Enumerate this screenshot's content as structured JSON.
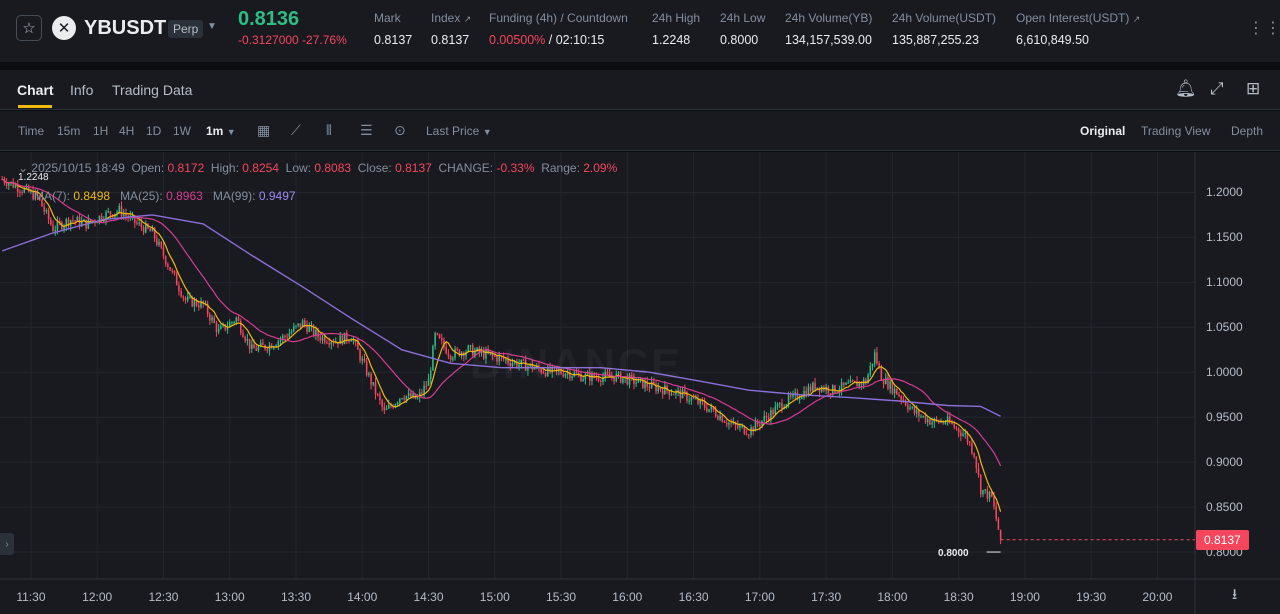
{
  "header": {
    "symbol": "YBUSDT",
    "badge": "Perp",
    "last_price": "0.8136",
    "change": "-0.3127000 -27.76%",
    "stats": [
      {
        "label": "Mark",
        "value": "0.8137"
      },
      {
        "label": "Index",
        "value": "0.8137"
      },
      {
        "label": "Funding (4h) / Countdown",
        "value_red": "0.00500%",
        "value_rest": " / 02:10:15"
      },
      {
        "label": "24h High",
        "value": "1.2248"
      },
      {
        "label": "24h Low",
        "value": "0.8000"
      },
      {
        "label": "24h Volume(YB)",
        "value": "134,157,539.00"
      },
      {
        "label": "24h Volume(USDT)",
        "value": "135,887,255.23"
      },
      {
        "label": "Open Interest(USDT)",
        "value": "6,610,849.50"
      }
    ]
  },
  "tabs": [
    "Chart",
    "Info",
    "Trading Data"
  ],
  "toolbar": {
    "timeframes": [
      "Time",
      "15m",
      "1H",
      "4H",
      "1D",
      "1W",
      "1m"
    ],
    "price_type": "Last Price",
    "views": [
      "Original",
      "Trading View",
      "Depth"
    ]
  },
  "legend": {
    "date": "2025/10/15 18:49",
    "open_label": "Open:",
    "open": "0.8172",
    "high_label": "High:",
    "high": "0.8254",
    "low_label": "Low:",
    "low": "0.8083",
    "close_label": "Close:",
    "close": "0.8137",
    "change_label": "CHANGE:",
    "change": "-0.33%",
    "range_label": "Range:",
    "range": "2.09%",
    "ma7_label": "MA(7):",
    "ma7": "0.8498",
    "ma25_label": "MA(25):",
    "ma25": "0.8963",
    "ma99_label": "MA(99):",
    "ma99": "0.9497"
  },
  "colors": {
    "up": "#2ebd85",
    "down": "#f6465d",
    "ma7": "#f0b90b",
    "ma25": "#d63c8f",
    "ma99": "#8b6fd6"
  },
  "watermark": "BINANCE",
  "current_price_tag": "0.8137",
  "high_marker": "1.2248",
  "low_marker": "0.8000",
  "chart_data": {
    "type": "candlestick",
    "y_ticks": [
      "1.2000",
      "1.1500",
      "1.1000",
      "1.0500",
      "1.0000",
      "0.9500",
      "0.9000",
      "0.8500",
      "0.8000"
    ],
    "y_tick_values": [
      1.2,
      1.15,
      1.1,
      1.05,
      1.0,
      0.95,
      0.9,
      0.85,
      0.8
    ],
    "x_ticks": [
      "11:30",
      "12:00",
      "12:30",
      "13:00",
      "13:30",
      "14:00",
      "14:30",
      "15:00",
      "15:30",
      "16:00",
      "16:30",
      "17:00",
      "17:30",
      "18:00",
      "18:30",
      "19:00",
      "19:30",
      "20:00"
    ],
    "ylim": [
      0.77,
      1.245
    ],
    "xlim": [
      "11:16",
      "20:17"
    ],
    "price_path": [
      [
        "11:17",
        1.215
      ],
      [
        "11:25",
        1.205
      ],
      [
        "11:33",
        1.195
      ],
      [
        "11:40",
        1.16
      ],
      [
        "11:48",
        1.17
      ],
      [
        "11:55",
        1.165
      ],
      [
        "12:03",
        1.175
      ],
      [
        "12:10",
        1.18
      ],
      [
        "12:18",
        1.165
      ],
      [
        "12:25",
        1.155
      ],
      [
        "12:33",
        1.115
      ],
      [
        "12:40",
        1.08
      ],
      [
        "12:48",
        1.075
      ],
      [
        "12:55",
        1.045
      ],
      [
        "13:03",
        1.06
      ],
      [
        "13:10",
        1.025
      ],
      [
        "13:18",
        1.03
      ],
      [
        "13:25",
        1.04
      ],
      [
        "13:33",
        1.055
      ],
      [
        "13:40",
        1.04
      ],
      [
        "13:48",
        1.035
      ],
      [
        "13:55",
        1.04
      ],
      [
        "14:03",
        0.995
      ],
      [
        "14:10",
        0.955
      ],
      [
        "14:18",
        0.975
      ],
      [
        "14:25",
        0.97
      ],
      [
        "14:30",
        0.99
      ],
      [
        "14:33",
        1.04
      ],
      [
        "14:40",
        1.02
      ],
      [
        "14:48",
        1.025
      ],
      [
        "14:55",
        1.02
      ],
      [
        "15:03",
        1.015
      ],
      [
        "15:10",
        1.01
      ],
      [
        "15:18",
        1.005
      ],
      [
        "15:25",
        1.0
      ],
      [
        "15:33",
        1.0
      ],
      [
        "15:40",
        0.995
      ],
      [
        "15:48",
        0.995
      ],
      [
        "15:55",
        0.995
      ],
      [
        "16:03",
        0.99
      ],
      [
        "16:10",
        0.985
      ],
      [
        "16:18",
        0.98
      ],
      [
        "16:25",
        0.975
      ],
      [
        "16:33",
        0.965
      ],
      [
        "16:40",
        0.955
      ],
      [
        "16:48",
        0.94
      ],
      [
        "16:55",
        0.935
      ],
      [
        "17:03",
        0.95
      ],
      [
        "17:10",
        0.965
      ],
      [
        "17:18",
        0.975
      ],
      [
        "17:25",
        0.985
      ],
      [
        "17:33",
        0.98
      ],
      [
        "17:40",
        0.985
      ],
      [
        "17:48",
        0.99
      ],
      [
        "17:52",
        1.02
      ],
      [
        "17:55",
        0.995
      ],
      [
        "18:03",
        0.975
      ],
      [
        "18:10",
        0.955
      ],
      [
        "18:18",
        0.945
      ],
      [
        "18:25",
        0.945
      ],
      [
        "18:33",
        0.93
      ],
      [
        "18:37",
        0.91
      ],
      [
        "18:40",
        0.87
      ],
      [
        "18:45",
        0.86
      ],
      [
        "18:49",
        0.8137
      ]
    ],
    "ma99_path": [
      [
        "11:17",
        1.135
      ],
      [
        "11:40",
        1.155
      ],
      [
        "12:03",
        1.17
      ],
      [
        "12:25",
        1.175
      ],
      [
        "12:48",
        1.165
      ],
      [
        "13:10",
        1.13
      ],
      [
        "13:33",
        1.095
      ],
      [
        "13:55",
        1.06
      ],
      [
        "14:18",
        1.025
      ],
      [
        "14:40",
        1.01
      ],
      [
        "15:03",
        1.005
      ],
      [
        "15:25",
        1.005
      ],
      [
        "15:48",
        1.005
      ],
      [
        "16:10",
        1.0
      ],
      [
        "16:33",
        0.99
      ],
      [
        "16:55",
        0.98
      ],
      [
        "17:18",
        0.975
      ],
      [
        "17:40",
        0.972
      ],
      [
        "18:03",
        0.968
      ],
      [
        "18:25",
        0.963
      ],
      [
        "18:40",
        0.962
      ],
      [
        "18:49",
        0.951
      ]
    ]
  }
}
